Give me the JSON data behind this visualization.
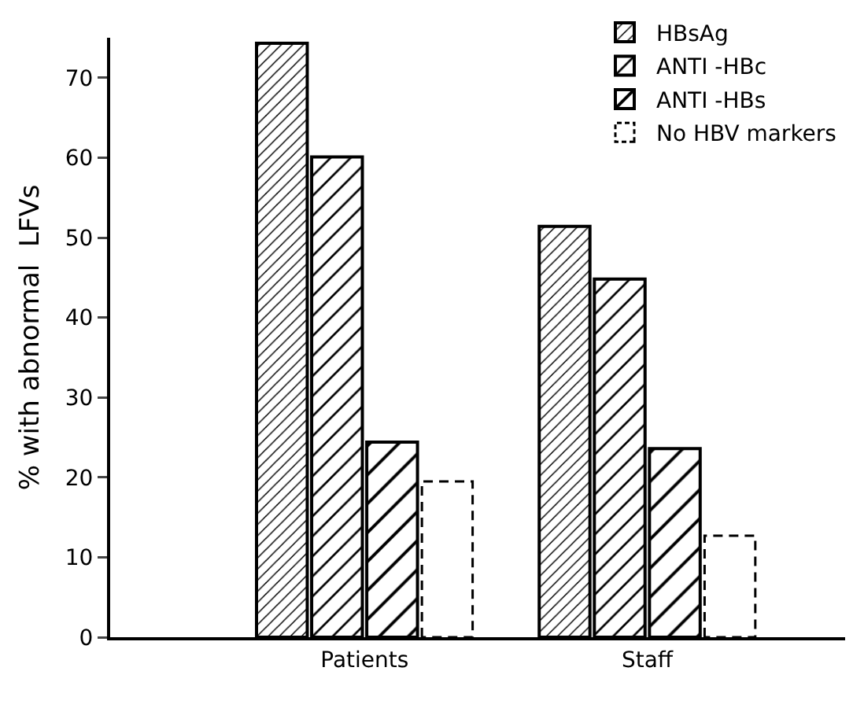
{
  "chart_data": {
    "type": "bar",
    "ylabel": "% with abnormal  LFVs",
    "categories": [
      "Patients",
      "Staff"
    ],
    "series": [
      {
        "name": "HBsAg",
        "color": "#000000",
        "values": [
          74.3,
          51.4
        ]
      },
      {
        "name": "ANTI -HBc",
        "color": "#000000",
        "values": [
          60.1,
          44.8
        ]
      },
      {
        "name": "ANTI -HBs",
        "color": "#000000",
        "values": [
          24.4,
          23.6
        ]
      },
      {
        "name": "No HBV markers",
        "color": "#000000",
        "values": [
          19.5,
          12.7
        ],
        "line_style": "dashed"
      }
    ],
    "ylim": [
      0,
      75
    ],
    "yticks": [
      0,
      10,
      20,
      30,
      40,
      50,
      60,
      70
    ],
    "grid": false,
    "legend": "top right"
  }
}
